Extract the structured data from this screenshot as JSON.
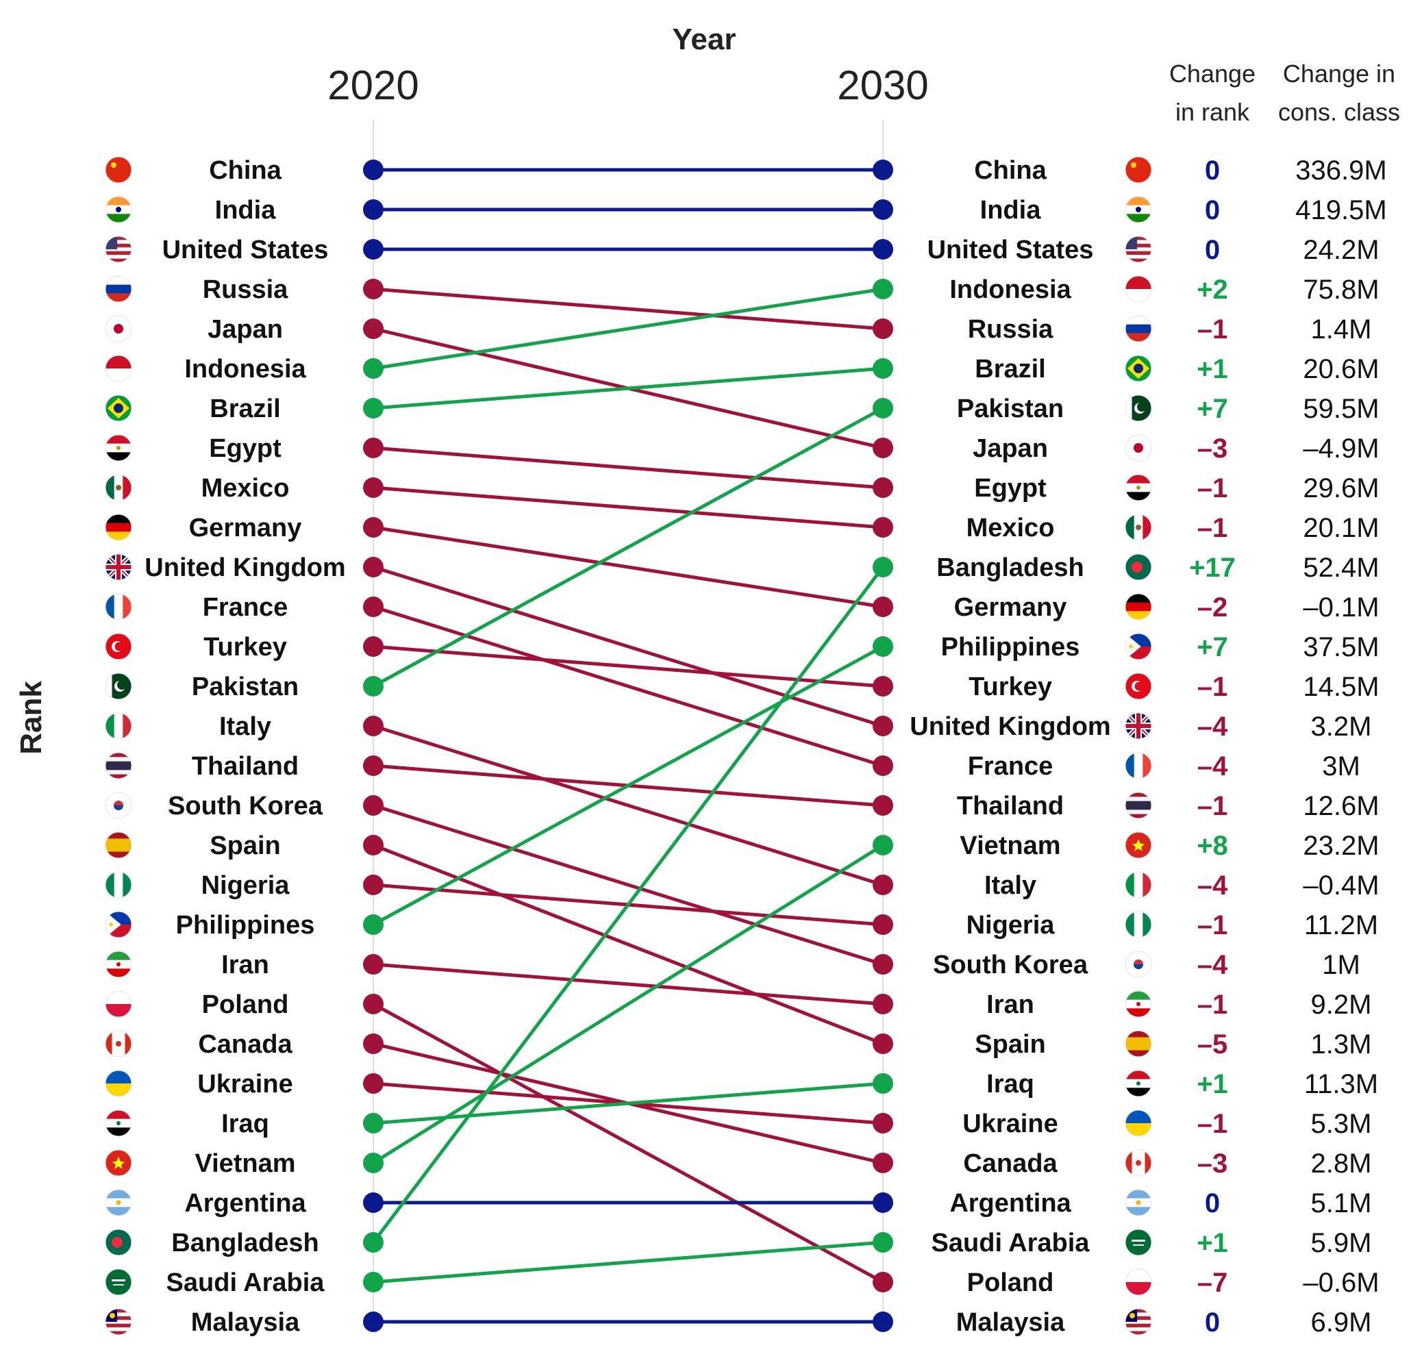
{
  "axis": {
    "x_title": "Year",
    "y_title": "Rank",
    "year_left": "2020",
    "year_right": "2030"
  },
  "columns": {
    "rank_header": [
      "Change",
      "in rank"
    ],
    "class_header": [
      "Change in",
      "cons. class"
    ]
  },
  "colors": {
    "same": "#0a1a8c",
    "down": "#a1123a",
    "up": "#11a44a",
    "guide": "#dddddd"
  },
  "chart_data": {
    "type": "slope",
    "title": "",
    "xlabel": "Year",
    "ylabel": "Rank",
    "x": [
      "2020",
      "2030"
    ],
    "ranks_2020": [
      "China",
      "India",
      "United States",
      "Russia",
      "Japan",
      "Indonesia",
      "Brazil",
      "Egypt",
      "Mexico",
      "Germany",
      "United Kingdom",
      "France",
      "Turkey",
      "Pakistan",
      "Italy",
      "Thailand",
      "South Korea",
      "Spain",
      "Nigeria",
      "Philippines",
      "Iran",
      "Poland",
      "Canada",
      "Ukraine",
      "Iraq",
      "Vietnam",
      "Argentina",
      "Bangladesh",
      "Saudi Arabia",
      "Malaysia"
    ],
    "ranks_2030": [
      {
        "country": "China",
        "change_in_rank": "0",
        "change_in_cons_class": "336.9M"
      },
      {
        "country": "India",
        "change_in_rank": "0",
        "change_in_cons_class": "419.5M"
      },
      {
        "country": "United States",
        "change_in_rank": "0",
        "change_in_cons_class": "24.2M"
      },
      {
        "country": "Indonesia",
        "change_in_rank": "+2",
        "change_in_cons_class": "75.8M"
      },
      {
        "country": "Russia",
        "change_in_rank": "–1",
        "change_in_cons_class": "1.4M"
      },
      {
        "country": "Brazil",
        "change_in_rank": "+1",
        "change_in_cons_class": "20.6M"
      },
      {
        "country": "Pakistan",
        "change_in_rank": "+7",
        "change_in_cons_class": "59.5M"
      },
      {
        "country": "Japan",
        "change_in_rank": "–3",
        "change_in_cons_class": "–4.9M"
      },
      {
        "country": "Egypt",
        "change_in_rank": "–1",
        "change_in_cons_class": "29.6M"
      },
      {
        "country": "Mexico",
        "change_in_rank": "–1",
        "change_in_cons_class": "20.1M"
      },
      {
        "country": "Bangladesh",
        "change_in_rank": "+17",
        "change_in_cons_class": "52.4M"
      },
      {
        "country": "Germany",
        "change_in_rank": "–2",
        "change_in_cons_class": "–0.1M"
      },
      {
        "country": "Philippines",
        "change_in_rank": "+7",
        "change_in_cons_class": "37.5M"
      },
      {
        "country": "Turkey",
        "change_in_rank": "–1",
        "change_in_cons_class": "14.5M"
      },
      {
        "country": "United Kingdom",
        "change_in_rank": "–4",
        "change_in_cons_class": "3.2M"
      },
      {
        "country": "France",
        "change_in_rank": "–4",
        "change_in_cons_class": "3M"
      },
      {
        "country": "Thailand",
        "change_in_rank": "–1",
        "change_in_cons_class": "12.6M"
      },
      {
        "country": "Vietnam",
        "change_in_rank": "+8",
        "change_in_cons_class": "23.2M"
      },
      {
        "country": "Italy",
        "change_in_rank": "–4",
        "change_in_cons_class": "–0.4M"
      },
      {
        "country": "Nigeria",
        "change_in_rank": "–1",
        "change_in_cons_class": "11.2M"
      },
      {
        "country": "South Korea",
        "change_in_rank": "–4",
        "change_in_cons_class": "1M"
      },
      {
        "country": "Iran",
        "change_in_rank": "–1",
        "change_in_cons_class": "9.2M"
      },
      {
        "country": "Spain",
        "change_in_rank": "–5",
        "change_in_cons_class": "1.3M"
      },
      {
        "country": "Iraq",
        "change_in_rank": "+1",
        "change_in_cons_class": "11.3M"
      },
      {
        "country": "Ukraine",
        "change_in_rank": "–1",
        "change_in_cons_class": "5.3M"
      },
      {
        "country": "Canada",
        "change_in_rank": "–3",
        "change_in_cons_class": "2.8M"
      },
      {
        "country": "Argentina",
        "change_in_rank": "0",
        "change_in_cons_class": "5.1M"
      },
      {
        "country": "Saudi Arabia",
        "change_in_rank": "+1",
        "change_in_cons_class": "5.9M"
      },
      {
        "country": "Poland",
        "change_in_rank": "–7",
        "change_in_cons_class": "–0.6M"
      },
      {
        "country": "Malaysia",
        "change_in_rank": "0",
        "change_in_cons_class": "6.9M"
      }
    ]
  },
  "flags": {
    "China": "flag-china-icon",
    "India": "flag-india-icon",
    "United States": "flag-usa-icon",
    "Russia": "flag-russia-icon",
    "Japan": "flag-japan-icon",
    "Indonesia": "flag-indonesia-icon",
    "Brazil": "flag-brazil-icon",
    "Egypt": "flag-egypt-icon",
    "Mexico": "flag-mexico-icon",
    "Germany": "flag-germany-icon",
    "United Kingdom": "flag-uk-icon",
    "France": "flag-france-icon",
    "Turkey": "flag-turkey-icon",
    "Pakistan": "flag-pakistan-icon",
    "Italy": "flag-italy-icon",
    "Thailand": "flag-thailand-icon",
    "South Korea": "flag-south-korea-icon",
    "Spain": "flag-spain-icon",
    "Nigeria": "flag-nigeria-icon",
    "Philippines": "flag-philippines-icon",
    "Iran": "flag-iran-icon",
    "Poland": "flag-poland-icon",
    "Canada": "flag-canada-icon",
    "Ukraine": "flag-ukraine-icon",
    "Iraq": "flag-iraq-icon",
    "Vietnam": "flag-vietnam-icon",
    "Argentina": "flag-argentina-icon",
    "Bangladesh": "flag-bangladesh-icon",
    "Saudi Arabia": "flag-saudi-arabia-icon",
    "Malaysia": "flag-malaysia-icon"
  }
}
